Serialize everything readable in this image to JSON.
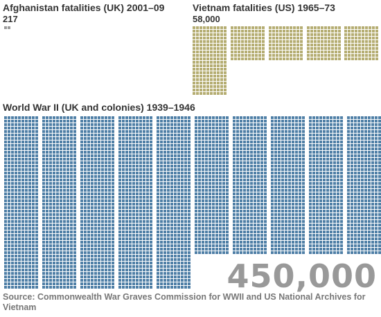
{
  "colors": {
    "afghanistan": "#9a9a9a",
    "vietnam": "#b5ad72",
    "ww2": "#4f7fa6",
    "text": "#333333",
    "big_number": "#999999",
    "source": "#777777"
  },
  "chart_data": [
    {
      "type": "waffle",
      "title": "Afghanistan fatalities (UK) 2001–09",
      "value_label": "217",
      "value": 217,
      "dots_shown": 2,
      "color": "#9a9a9a"
    },
    {
      "type": "waffle",
      "title": "Vietnam fatalities (US) 1965–73",
      "value_label": "58,000",
      "value": 58000,
      "blocks": 6,
      "color": "#b5ad72"
    },
    {
      "type": "waffle",
      "title": "World War II (UK and colonies) 1939–1946",
      "value_label": "450,000",
      "value": 450000,
      "blocks": 45,
      "color": "#4f7fa6"
    }
  ],
  "source": "Source: Commonwealth War Graves Commission for WWII and US National Archives for Vietnam"
}
